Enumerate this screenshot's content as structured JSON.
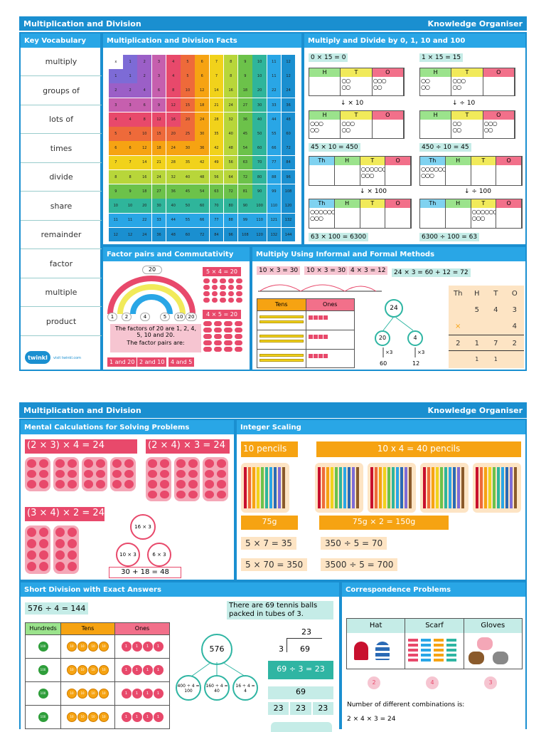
{
  "page1": {
    "title": "Multiplication and Division",
    "subtitle": "Knowledge Organiser",
    "vocab_heading": "Key Vocabulary",
    "vocab": [
      "multiply",
      "groups of",
      "lots of",
      "times",
      "divide",
      "share",
      "remainder",
      "factor",
      "multiple",
      "product"
    ],
    "logo_text": "twinkl",
    "logo_url": "visit twinkl.com",
    "facts_heading": "Multiplication and Division Facts",
    "grid_corner": "x",
    "mult_heading": "Multiply and Divide by 0, 1, 10 and 100",
    "eqs": [
      "0 × 15 = 0",
      "1 × 15 = 15",
      "45 × 10 = 450",
      "450 ÷ 10 = 45",
      "63 × 100 = 6300",
      "6300 ÷ 100 = 63"
    ],
    "arrows": [
      "× 10",
      "÷ 10",
      "× 100",
      "÷ 100"
    ],
    "hto": [
      "H",
      "T",
      "O"
    ],
    "thhto": [
      "Th",
      "H",
      "T",
      "O"
    ],
    "factor_heading": "Factor pairs and Commutativity",
    "factor_top": "20",
    "factor_nums": [
      "1",
      "2",
      "4",
      "5",
      "10",
      "20"
    ],
    "factor_text": "The factors of 20 are 1, 2, 4, 5, 10 and 20.",
    "factor_pairs_label": "The factor pairs are:",
    "factor_pairs": [
      "1 and 20",
      "2 and 10",
      "4 and 5"
    ],
    "comm": [
      "5 × 4 = 20",
      "4 × 5 = 20"
    ],
    "methods_heading": "Multiply Using Informal and Formal Methods",
    "informal": [
      "10 × 3 = 30",
      "10 × 3 = 30",
      "4 × 3 = 12"
    ],
    "informal_total": "24 × 3 = 60 + 12 = 72",
    "tens_ones": [
      "Tens",
      "Ones"
    ],
    "tree": {
      "top": "24",
      "l": "20",
      "r": "4",
      "lx": "×3",
      "rx": "×3",
      "lb": "60",
      "rb": "12"
    },
    "formal": {
      "head": [
        "Th",
        "H",
        "T",
        "O"
      ],
      "r1": [
        "",
        "5",
        "4",
        "3"
      ],
      "r2": [
        "×",
        "",
        "",
        "4"
      ],
      "r3": [
        "2",
        "1",
        "7",
        "2"
      ],
      "r4": [
        "",
        "1",
        "1",
        ""
      ]
    }
  },
  "page2": {
    "title": "Multiplication and Division",
    "subtitle": "Knowledge Organiser",
    "mental_heading": "Mental Calculations for Solving Problems",
    "mental": [
      "(2 × 3) × 4 = 24",
      "(2 × 4) × 3 = 24",
      "(3 × 4) × 2 = 24"
    ],
    "mtree": {
      "top": "16 × 3",
      "l": "10 × 3",
      "r": "6 × 3",
      "sum": "30 + 18 = 48"
    },
    "scaling_heading": "Integer Scaling",
    "pencils": [
      "10 pencils",
      "10 x 4 = 40 pencils"
    ],
    "grams": [
      "75g",
      "75g × 2 = 150g"
    ],
    "scale_eqs": [
      "5 × 7 = 35",
      "350 ÷ 5 = 70",
      "5 × 70 = 350",
      "3500 ÷ 5 = 700"
    ],
    "shortdiv_heading": "Short Division with Exact Answers",
    "sd_eq": "576 ÷ 4 = 144",
    "sd_cols": [
      "Hundreds",
      "Tens",
      "Ones"
    ],
    "sd_token_h": "100",
    "sd_token_t": "10",
    "sd_token_o": "1",
    "sd_tree": {
      "top": "576",
      "a": "400 ÷ 4 = 100",
      "b": "160 ÷ 4 = 40",
      "c": "16 ÷ 4 = 4"
    },
    "tennis": "There are 69 tennis balls packed in tubes of 3.",
    "bus": {
      "q": "23",
      "d": "3",
      "n": "69"
    },
    "tennis_eq": "69 ÷ 3 = 23",
    "bar_top": "69",
    "bar_parts": [
      "23",
      "23",
      "23"
    ],
    "corr_heading": "Correspondence Problems",
    "corr_cols": [
      "Hat",
      "Scarf",
      "Gloves"
    ],
    "corr_counts": [
      "2",
      "4",
      "3"
    ],
    "corr_text": "Number of different combinations is:",
    "corr_eq": "2 × 4 × 3 = 24"
  }
}
